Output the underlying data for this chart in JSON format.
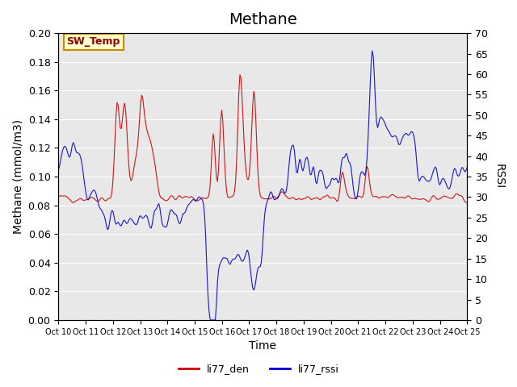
{
  "title": "Methane",
  "xlabel": "Time",
  "ylabel_left": "Methane (mmol/m3)",
  "ylabel_right": "RSSI",
  "ylim_left": [
    0.0,
    0.2
  ],
  "ylim_right": [
    0,
    70
  ],
  "yticks_left": [
    0.0,
    0.02,
    0.04,
    0.06,
    0.08,
    0.1,
    0.12,
    0.14,
    0.16,
    0.18,
    0.2
  ],
  "yticks_right": [
    0,
    5,
    10,
    15,
    20,
    25,
    30,
    35,
    40,
    45,
    50,
    55,
    60,
    65,
    70
  ],
  "xtick_labels": [
    "Oct 10",
    "Oct 11",
    "Oct 12",
    "Oct 13",
    "Oct 14",
    "Oct 15",
    "Oct 16",
    "Oct 17",
    "Oct 18",
    "Oct 19",
    "Oct 20",
    "Oct 21",
    "Oct 22",
    "Oct 23",
    "Oct 24",
    "Oct 25"
  ],
  "color_red": "#cc0000",
  "color_blue": "#0000cc",
  "bg_color": "#e8e8e8",
  "annotation_text": "SW_Temp",
  "annotation_facecolor": "#ffffcc",
  "annotation_edgecolor": "#cc8800",
  "annotation_textcolor": "#8b0000",
  "legend_labels": [
    "li77_den",
    "li77_rssi"
  ],
  "title_fontsize": 14,
  "axis_label_fontsize": 10,
  "tick_fontsize": 9
}
